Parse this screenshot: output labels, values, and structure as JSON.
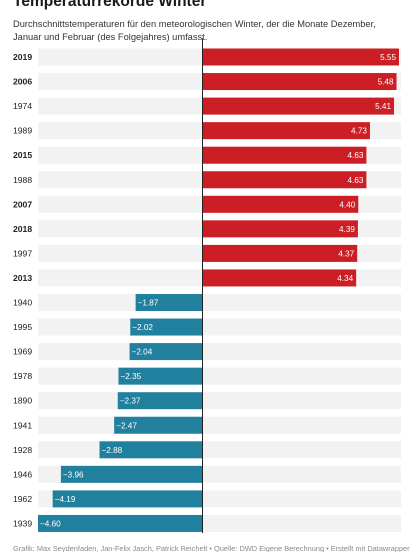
{
  "header": {
    "title": "Temperaturrekorde Winter",
    "subtitle": "Durchschnittstemperaturen für den meteorologischen Winter, der die Monate Dezember, Januar und Februar (des Folgejahres) umfasst."
  },
  "footer": {
    "text": "Grafik: Max Seydenfaden, Jan-Felix Jasch, Patrick Reichelt • Quelle: DWD Eigene Berechnung • Erstellt mit Datawrapper"
  },
  "colors": {
    "positive": "#cc1f25",
    "negative": "#22809f",
    "track": "#f2f2f2",
    "axis": "#222222"
  },
  "chart_data": {
    "type": "bar",
    "orientation": "horizontal",
    "xlim": [
      -4.6,
      5.55
    ],
    "grid": false,
    "bars": [
      {
        "year": "2019",
        "value": 5.55,
        "label": "5.55",
        "bold": true
      },
      {
        "year": "2006",
        "value": 5.48,
        "label": "5.48",
        "bold": true
      },
      {
        "year": "1974",
        "value": 5.41,
        "label": "5.41",
        "bold": false
      },
      {
        "year": "1989",
        "value": 4.73,
        "label": "4.73",
        "bold": false
      },
      {
        "year": "2015",
        "value": 4.63,
        "label": "4.63",
        "bold": true
      },
      {
        "year": "1988",
        "value": 4.63,
        "label": "4.63",
        "bold": false
      },
      {
        "year": "2007",
        "value": 4.4,
        "label": "4.40",
        "bold": true
      },
      {
        "year": "2018",
        "value": 4.39,
        "label": "4.39",
        "bold": true
      },
      {
        "year": "1997",
        "value": 4.37,
        "label": "4.37",
        "bold": false
      },
      {
        "year": "2013",
        "value": 4.34,
        "label": "4.34",
        "bold": true
      },
      {
        "year": "1940",
        "value": -1.87,
        "label": "−1.87",
        "bold": false
      },
      {
        "year": "1995",
        "value": -2.02,
        "label": "−2.02",
        "bold": false
      },
      {
        "year": "1969",
        "value": -2.04,
        "label": "−2.04",
        "bold": false
      },
      {
        "year": "1978",
        "value": -2.35,
        "label": "−2.35",
        "bold": false
      },
      {
        "year": "1890",
        "value": -2.37,
        "label": "−2.37",
        "bold": false
      },
      {
        "year": "1941",
        "value": -2.47,
        "label": "−2.47",
        "bold": false
      },
      {
        "year": "1928",
        "value": -2.88,
        "label": "−2.88",
        "bold": false
      },
      {
        "year": "1946",
        "value": -3.96,
        "label": "−3.96",
        "bold": false
      },
      {
        "year": "1962",
        "value": -4.19,
        "label": "−4.19",
        "bold": false
      },
      {
        "year": "1939",
        "value": -4.6,
        "label": "−4.60",
        "bold": false
      }
    ]
  }
}
